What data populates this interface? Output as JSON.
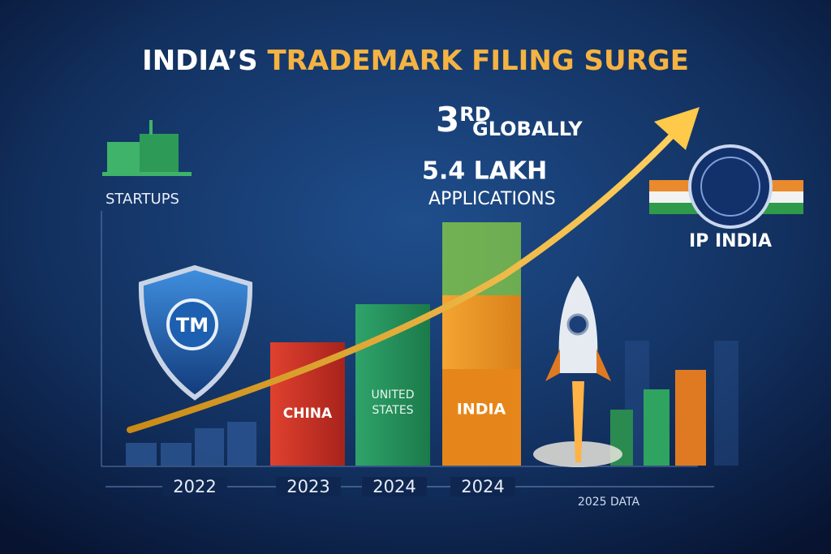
{
  "header": {
    "title_lead": "INDIA’S",
    "title_rest": "TRADEMARK FILING SURGE"
  },
  "callouts": {
    "rank": "3",
    "rank_suffix": "RD",
    "rank_text": "GLOBALLY",
    "volume": "5.4 LAKH",
    "volume_text": "APPLICATIONS"
  },
  "icons": {
    "startups": "STARTUPS",
    "tm": "TM",
    "ip_india": "IP INDIA"
  },
  "bars": {
    "labels": [
      "CHINA",
      "UNITED",
      "STATES",
      "INDIA"
    ]
  },
  "axis": {
    "labels": [
      "2022",
      "2023",
      "2024",
      "2024"
    ],
    "note": "2025 DATA"
  }
}
